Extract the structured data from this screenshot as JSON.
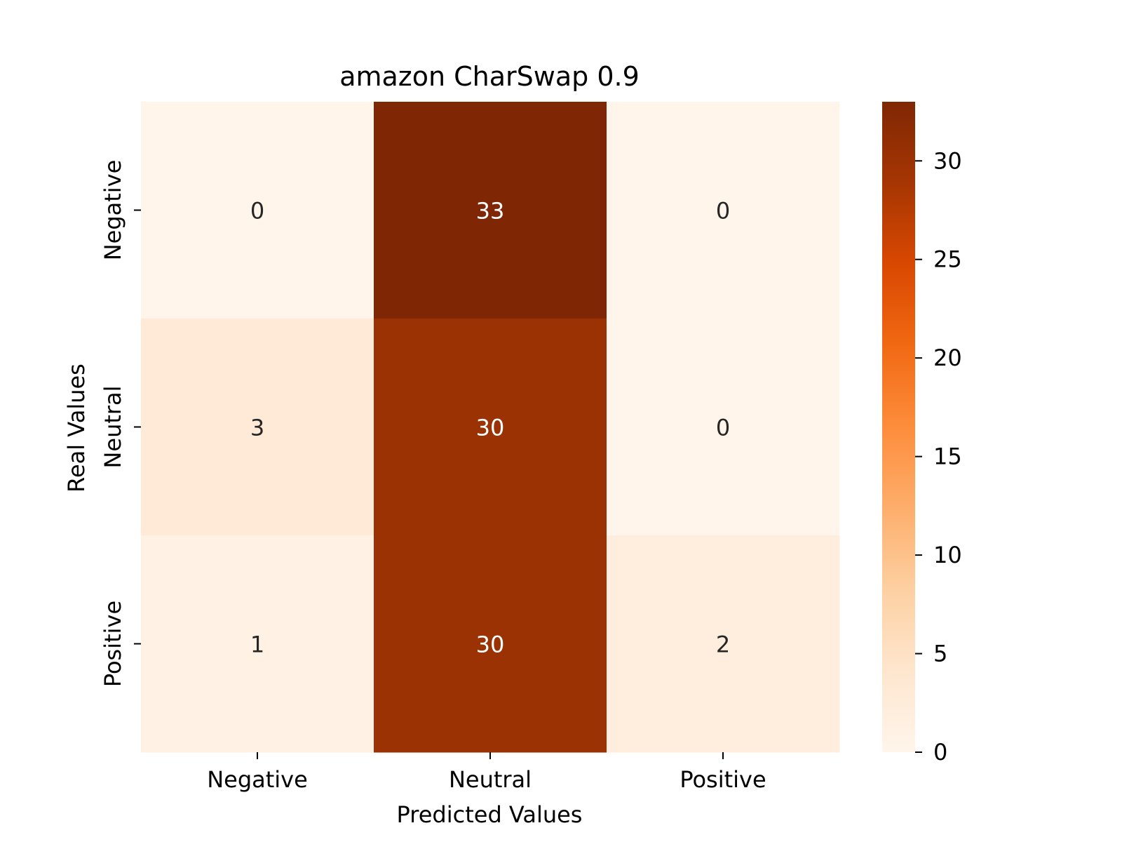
{
  "chart_data": {
    "type": "heatmap",
    "title": "amazon CharSwap 0.9",
    "xlabel": "Predicted Values",
    "ylabel": "Real Values",
    "x_categories": [
      "Negative",
      "Neutral",
      "Positive"
    ],
    "y_categories": [
      "Negative",
      "Neutral",
      "Positive"
    ],
    "values": [
      [
        0,
        33,
        0
      ],
      [
        3,
        30,
        0
      ],
      [
        1,
        30,
        2
      ]
    ],
    "colormap": "Oranges",
    "vmin": 0,
    "vmax": 33,
    "colorbar_ticks": [
      0,
      5,
      10,
      15,
      20,
      25,
      30
    ],
    "colorbar_tick_labels": [
      "0",
      "5",
      "10",
      "15",
      "20",
      "25",
      "30"
    ],
    "legend": "colorbar-right",
    "grid": false
  }
}
